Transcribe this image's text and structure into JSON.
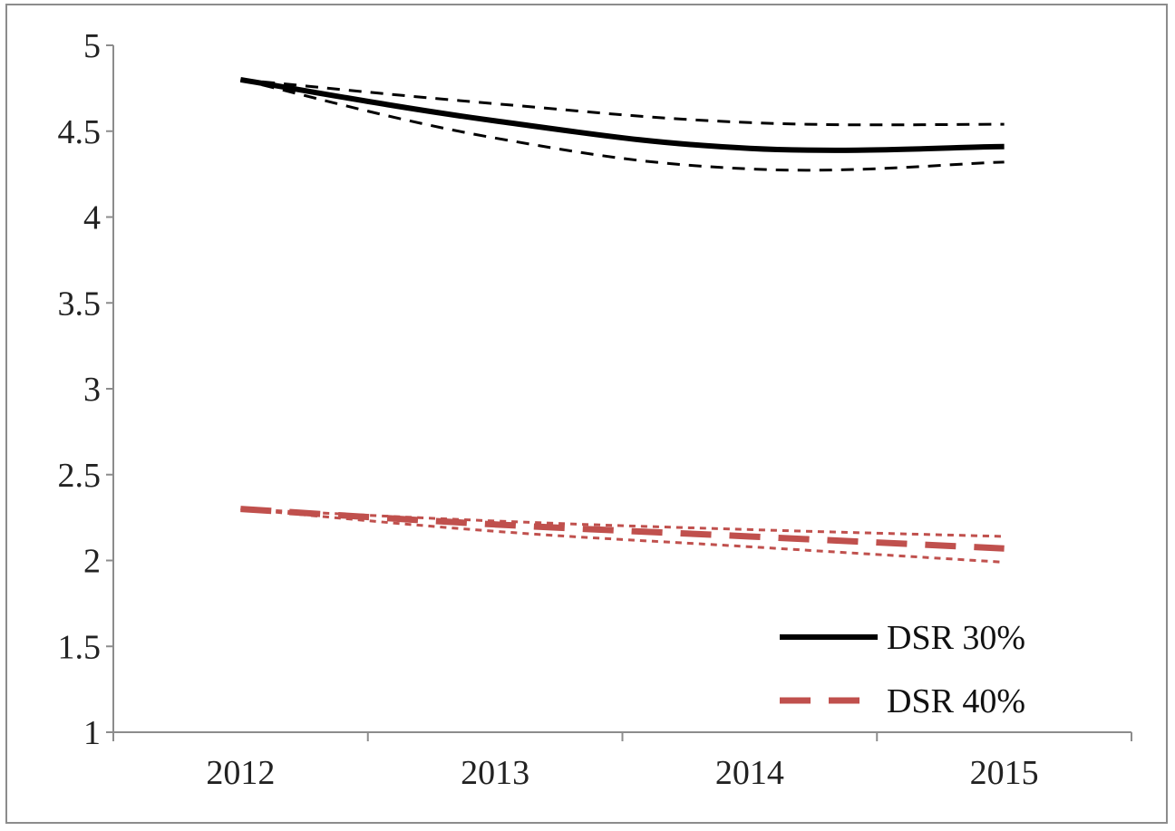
{
  "chart_data": {
    "type": "line",
    "categories": [
      "2012",
      "2013",
      "2014",
      "2015"
    ],
    "y_ticks": [
      "1",
      "1.5",
      "2",
      "2.5",
      "3",
      "3.5",
      "4",
      "4.5",
      "5"
    ],
    "ylim": [
      1,
      5
    ],
    "title": "",
    "xlabel": "",
    "ylabel": "",
    "grid": false,
    "legend_position": "bottom-right",
    "series": [
      {
        "name": "DSR 30%",
        "color": "#000000",
        "style": "solid",
        "values": [
          4.8,
          4.56,
          4.4,
          4.41
        ],
        "band_upper": [
          4.8,
          4.66,
          4.55,
          4.54
        ],
        "band_lower": [
          4.8,
          4.46,
          4.28,
          4.32
        ]
      },
      {
        "name": "DSR 40%",
        "color": "#c0504d",
        "style": "dashed",
        "values": [
          2.3,
          2.21,
          2.14,
          2.07
        ],
        "band_upper": [
          2.3,
          2.23,
          2.18,
          2.14
        ],
        "band_lower": [
          2.3,
          2.17,
          2.08,
          1.99
        ]
      }
    ]
  }
}
